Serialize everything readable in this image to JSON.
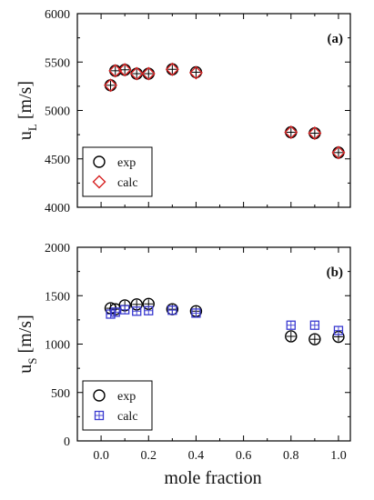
{
  "chart_data": [
    {
      "type": "scatter",
      "panel_label": "(a)",
      "ylabel": "u",
      "ylabel_sub": "L",
      "ylabel_unit": "[m/s]",
      "xlim": [
        -0.1,
        1.05
      ],
      "ylim": [
        4000,
        6000
      ],
      "xticks": [
        0.0,
        0.2,
        0.4,
        0.6,
        0.8,
        1.0
      ],
      "xtick_labels": [
        "0.0",
        "0.2",
        "0.4",
        "0.6",
        "0.8",
        "1.0"
      ],
      "yticks": [
        4000,
        4500,
        5000,
        5500,
        6000
      ],
      "ytick_labels": [
        "4000",
        "4500",
        "5000",
        "5500",
        "6000"
      ],
      "show_xtick_labels": false,
      "legend_position": "bottom-left",
      "series": [
        {
          "name": "exp",
          "marker": "circle-plus",
          "color": "#000000",
          "x": [
            0.04,
            0.06,
            0.1,
            0.15,
            0.2,
            0.3,
            0.4,
            0.8,
            0.9,
            1.0
          ],
          "y": [
            5260,
            5410,
            5420,
            5380,
            5380,
            5425,
            5395,
            4775,
            4765,
            4565
          ]
        },
        {
          "name": "calc",
          "marker": "diamond",
          "color": "#d62020",
          "x": [
            0.04,
            0.06,
            0.1,
            0.15,
            0.2,
            0.3,
            0.4,
            0.8,
            0.9,
            1.0
          ],
          "y": [
            5260,
            5410,
            5420,
            5380,
            5380,
            5425,
            5390,
            4775,
            4765,
            4565
          ]
        }
      ]
    },
    {
      "type": "scatter",
      "panel_label": "(b)",
      "ylabel": "u",
      "ylabel_sub": "S",
      "ylabel_unit": "[m/s]",
      "xlabel": "mole fraction",
      "xlim": [
        -0.1,
        1.05
      ],
      "ylim": [
        0,
        2000
      ],
      "xticks": [
        0.0,
        0.2,
        0.4,
        0.6,
        0.8,
        1.0
      ],
      "xtick_labels": [
        "0.0",
        "0.2",
        "0.4",
        "0.6",
        "0.8",
        "1.0"
      ],
      "yticks": [
        0,
        500,
        1000,
        1500,
        2000
      ],
      "ytick_labels": [
        "0",
        "500",
        "1000",
        "1500",
        "2000"
      ],
      "show_xtick_labels": true,
      "legend_position": "bottom-left",
      "series": [
        {
          "name": "exp",
          "marker": "circle-plus",
          "color": "#000000",
          "x": [
            0.04,
            0.06,
            0.1,
            0.15,
            0.2,
            0.3,
            0.4,
            0.8,
            0.9,
            1.0
          ],
          "y": [
            1370,
            1360,
            1400,
            1410,
            1415,
            1360,
            1340,
            1080,
            1050,
            1075
          ]
        },
        {
          "name": "calc",
          "marker": "square-plus",
          "color": "#3a3ad0",
          "x": [
            0.04,
            0.06,
            0.1,
            0.15,
            0.2,
            0.3,
            0.4,
            0.8,
            0.9,
            1.0
          ],
          "y": [
            1310,
            1330,
            1355,
            1340,
            1345,
            1350,
            1320,
            1195,
            1195,
            1140
          ]
        }
      ]
    }
  ]
}
